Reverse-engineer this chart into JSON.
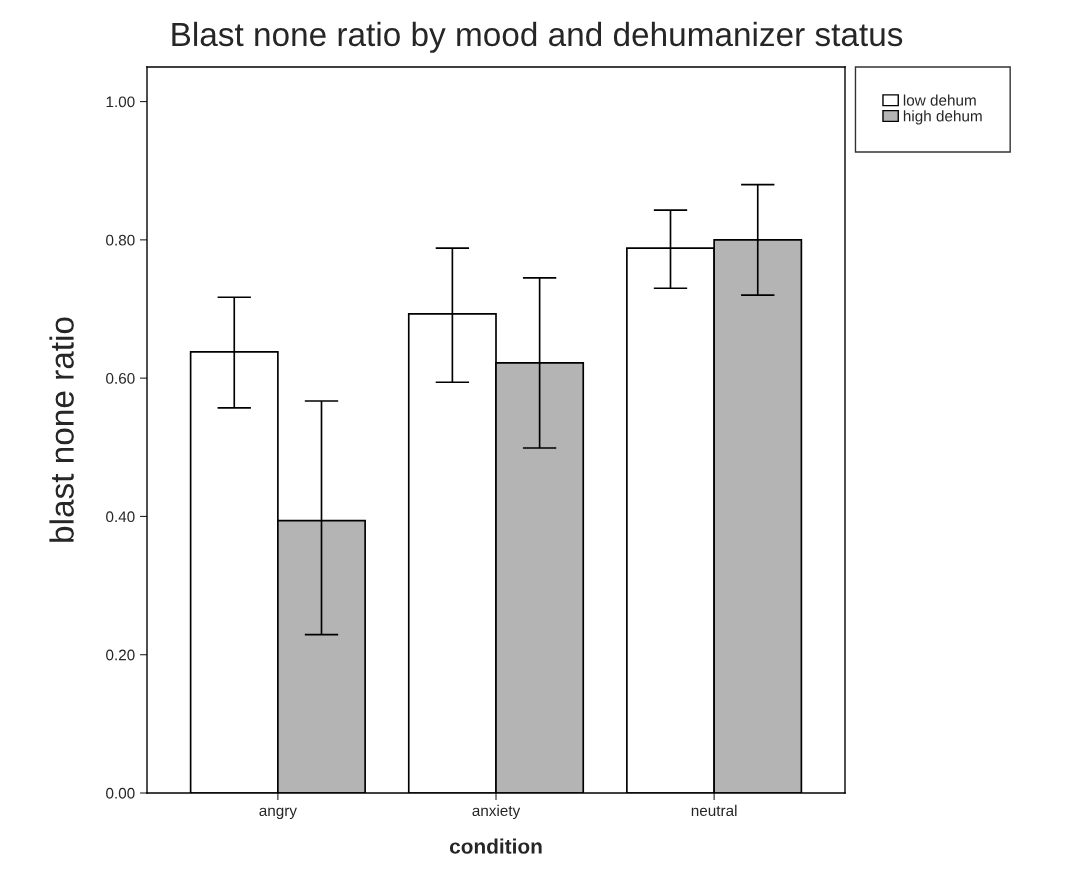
{
  "chart_data": {
    "type": "bar",
    "title": "Blast none ratio by mood and dehumanizer status",
    "xlabel": "condition",
    "ylabel": "blast none ratio",
    "categories": [
      "angry",
      "anxiety",
      "neutral"
    ],
    "series": [
      {
        "name": "low dehum",
        "color": "#ffffff",
        "values": [
          0.638,
          0.693,
          0.788
        ],
        "errors": [
          [
            0.557,
            0.717
          ],
          [
            0.594,
            0.788
          ],
          [
            0.73,
            0.843
          ]
        ]
      },
      {
        "name": "high dehum",
        "color": "#b4b4b4",
        "values": [
          0.394,
          0.622,
          0.8
        ],
        "errors": [
          [
            0.229,
            0.567
          ],
          [
            0.499,
            0.745
          ],
          [
            0.72,
            0.88
          ]
        ]
      }
    ],
    "ylim": [
      0,
      1.05
    ],
    "yticks": [
      {
        "value": 0,
        "label": "0.00"
      },
      {
        "value": 0.2,
        "label": "0.20"
      },
      {
        "value": 0.4,
        "label": "0.40"
      },
      {
        "value": 0.6,
        "label": "0.60"
      },
      {
        "value": 0.8,
        "label": "0.80"
      },
      {
        "value": 1.0,
        "label": "1.00"
      }
    ],
    "grid": false,
    "legend": "top right"
  }
}
